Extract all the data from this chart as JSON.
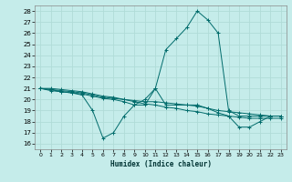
{
  "xlabel": "Humidex (Indice chaleur)",
  "xlim": [
    -0.5,
    23.5
  ],
  "ylim": [
    15.5,
    28.5
  ],
  "xticks": [
    0,
    1,
    2,
    3,
    4,
    5,
    6,
    7,
    8,
    9,
    10,
    11,
    12,
    13,
    14,
    15,
    16,
    17,
    18,
    19,
    20,
    21,
    22,
    23
  ],
  "yticks": [
    16,
    17,
    18,
    19,
    20,
    21,
    22,
    23,
    24,
    25,
    26,
    27,
    28
  ],
  "bg_color": "#c5ecea",
  "grid_color": "#b0dcd8",
  "line_color": "#006b6b",
  "lines": [
    {
      "x": [
        0,
        1,
        2,
        3,
        4,
        5,
        6,
        7,
        8,
        9,
        10,
        11,
        12,
        13,
        14,
        15,
        16,
        17,
        18,
        19,
        20,
        21,
        22,
        23
      ],
      "y": [
        21.0,
        20.9,
        20.7,
        20.6,
        20.4,
        19.0,
        16.5,
        17.0,
        18.5,
        19.5,
        20.0,
        21.0,
        19.5,
        19.5,
        19.5,
        19.5,
        19.2,
        18.8,
        18.5,
        17.5,
        17.5,
        18.0,
        18.5,
        18.5
      ]
    },
    {
      "x": [
        0,
        1,
        2,
        3,
        4,
        5,
        6,
        7,
        8,
        9,
        10,
        11,
        12,
        13,
        14,
        15,
        16,
        17,
        18,
        19,
        20,
        21,
        22,
        23
      ],
      "y": [
        21.0,
        20.9,
        20.8,
        20.7,
        20.6,
        20.4,
        20.2,
        20.1,
        20.0,
        19.9,
        19.8,
        19.8,
        19.7,
        19.6,
        19.5,
        19.4,
        19.2,
        19.0,
        18.9,
        18.8,
        18.7,
        18.6,
        18.5,
        18.5
      ]
    },
    {
      "x": [
        0,
        1,
        2,
        3,
        4,
        5,
        6,
        7,
        8,
        9,
        10,
        11,
        12,
        13,
        14,
        15,
        16,
        17,
        18,
        19,
        20,
        21,
        22,
        23
      ],
      "y": [
        21.0,
        20.8,
        20.7,
        20.6,
        20.5,
        20.3,
        20.1,
        20.0,
        19.8,
        19.5,
        19.5,
        21.0,
        24.5,
        25.5,
        26.5,
        28.0,
        27.2,
        26.0,
        19.0,
        18.5,
        18.5,
        18.5,
        18.5,
        18.5
      ]
    },
    {
      "x": [
        0,
        1,
        2,
        3,
        4,
        5,
        6,
        7,
        8,
        9,
        10,
        11,
        12,
        13,
        14,
        15,
        16,
        17,
        18,
        19,
        20,
        21,
        22,
        23
      ],
      "y": [
        21.0,
        21.0,
        20.9,
        20.8,
        20.7,
        20.5,
        20.3,
        20.2,
        20.0,
        19.8,
        19.6,
        19.5,
        19.3,
        19.2,
        19.0,
        18.9,
        18.7,
        18.6,
        18.5,
        18.4,
        18.3,
        18.3,
        18.3,
        18.3
      ]
    }
  ]
}
